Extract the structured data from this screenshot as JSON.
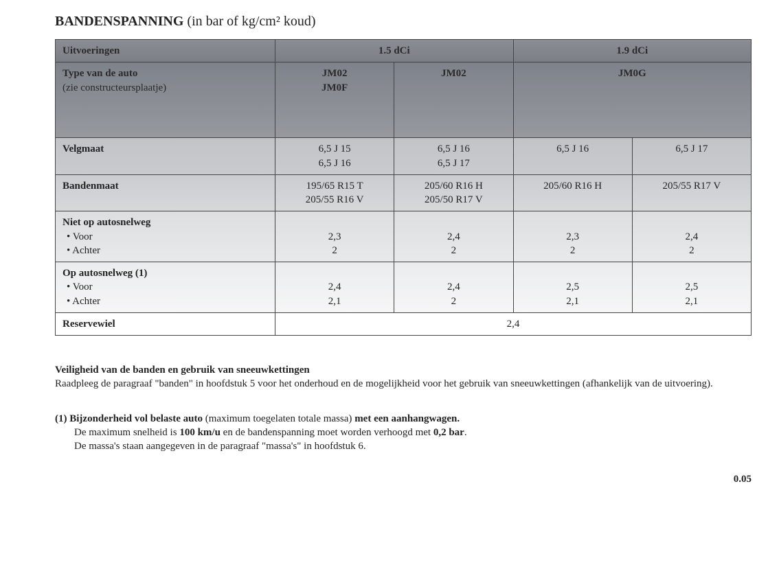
{
  "title": {
    "main": "BANDENSPANNING",
    "paren": "(in bar of kg/cm² koud)"
  },
  "table": {
    "headers": {
      "uitvoeringen": "Uitvoeringen",
      "engine1": "1.5 dCi",
      "engine2": "1.9 dCi",
      "type_label_bold": "Type van de auto",
      "type_label_sub": "(zie constructeursplaatje)",
      "type_c1_l1": "JM02",
      "type_c1_l2": "JM0F",
      "type_c2": "JM02",
      "type_c3": "JM0G"
    },
    "rows": {
      "velgmaat": {
        "label": "Velgmaat",
        "c1_l1": "6,5 J 15",
        "c1_l2": "6,5 J 16",
        "c2_l1": "6,5 J 16",
        "c2_l2": "6,5 J 17",
        "c3": "6,5 J 16",
        "c4": "6,5 J 17"
      },
      "bandenmaat": {
        "label": "Bandenmaat",
        "c1_l1": "195/65 R15 T",
        "c1_l2": "205/55 R16 V",
        "c2_l1": "205/60 R16 H",
        "c2_l2": "205/50 R17 V",
        "c3": "205/60 R16 H",
        "c4": "205/55 R17 V"
      },
      "niet": {
        "label": "Niet op autosnelweg",
        "voor_label": "• Voor",
        "achter_label": "• Achter",
        "c1_v": "2,3",
        "c1_a": "2",
        "c2_v": "2,4",
        "c2_a": "2",
        "c3_v": "2,3",
        "c3_a": "2",
        "c4_v": "2,4",
        "c4_a": "2"
      },
      "op": {
        "label": "Op autosnelweg (1)",
        "voor_label": "• Voor",
        "achter_label": "• Achter",
        "c1_v": "2,4",
        "c1_a": "2,1",
        "c2_v": "2,4",
        "c2_a": "2",
        "c3_v": "2,5",
        "c3_a": "2,1",
        "c4_v": "2,5",
        "c4_a": "2,1"
      },
      "reserve": {
        "label": "Reservewiel",
        "value": "2,4"
      }
    }
  },
  "body": {
    "heading": "Veiligheid van de banden en gebruik van sneeuwkettingen",
    "para": "Raadpleeg de paragraaf \"banden\" in hoofdstuk 5 voor het onderhoud en de mogelijkheid voor het gebruik van sneeuwkettingen (afhankelijk van de uitvoering)."
  },
  "footnote": {
    "lead_bold1": "(1) Bijzonderheid vol belaste auto",
    "lead_mid": " (maximum toegelaten totale massa) ",
    "lead_bold2": "met een aanhangwagen.",
    "line2a": "De maximum snelheid is ",
    "line2b": "100 km/u",
    "line2c": " en de bandenspanning moet worden verhoogd met ",
    "line2d": "0,2 bar",
    "line2e": ".",
    "line3": "De massa's staan aangegeven in de paragraaf \"massa's\" in hoofdstuk 6."
  },
  "page": "0.05"
}
